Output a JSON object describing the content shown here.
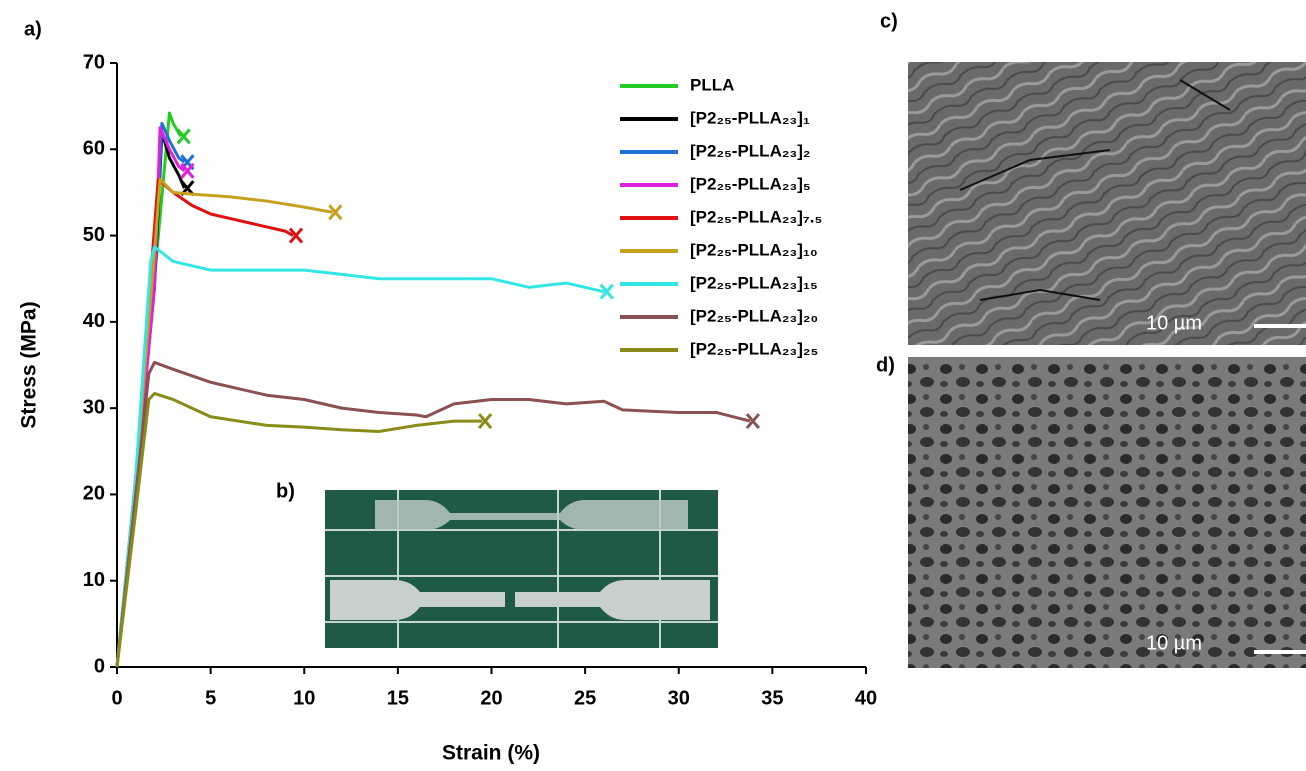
{
  "chart_data": {
    "type": "line",
    "xlabel": "Strain (%)",
    "ylabel": "Stress (MPa)",
    "panel_labels": [
      "a)",
      "b)",
      "c)",
      "d)"
    ],
    "scale_bar_labels": [
      "10 µm",
      "10 µm"
    ],
    "xlim": [
      0,
      40
    ],
    "xticks": [
      0,
      5,
      10,
      15,
      20,
      25,
      30,
      35,
      40
    ],
    "ylim": [
      0,
      70
    ],
    "yticks": [
      0,
      10,
      20,
      30,
      40,
      50,
      60,
      70
    ],
    "grid": false,
    "legend": "upper right",
    "series": [
      {
        "name": "PLLA",
        "color": "#22cc22",
        "x": [
          0,
          1,
          2,
          2.8,
          3.0,
          3.4
        ],
        "values": [
          0,
          22,
          45,
          64.2,
          63,
          61.5
        ]
      },
      {
        "name": "[P2₂₅-PLLA₂₃]₁",
        "color": "#000000",
        "x": [
          0,
          1,
          2,
          2.4,
          2.8,
          3.3,
          3.6
        ],
        "values": [
          0,
          21,
          44,
          62,
          59,
          57,
          55.5
        ]
      },
      {
        "name": "[P2₂₅-PLLA₂₃]₂",
        "color": "#1f6fd6",
        "x": [
          0,
          1,
          2,
          2.4,
          2.8,
          3.3,
          3.6
        ],
        "values": [
          0,
          21,
          45,
          63,
          61,
          59,
          58.5
        ]
      },
      {
        "name": "[P2₂₅-PLLA₂₃]₅",
        "color": "#e020e0",
        "x": [
          0,
          1,
          2,
          2.3,
          2.8,
          3.3,
          3.6
        ],
        "values": [
          0,
          21,
          44,
          62.5,
          60,
          58,
          57.5
        ]
      },
      {
        "name": "[P2₂₅-PLLA₂₃]₇.₅",
        "color": "#e01010",
        "x": [
          0,
          1,
          1.9,
          2.2,
          3,
          4,
          5,
          6,
          7,
          8,
          9,
          9.4
        ],
        "values": [
          0,
          22,
          48,
          56.5,
          55,
          53.5,
          52.5,
          52,
          51.5,
          51,
          50.5,
          50
        ]
      },
      {
        "name": "[P2₂₅-PLLA₂₃]₁₀",
        "color": "#c8a020",
        "x": [
          0,
          1,
          2,
          2.3,
          3,
          4,
          6,
          8,
          10,
          11.5
        ],
        "values": [
          0,
          22,
          48,
          56.5,
          55,
          54.8,
          54.5,
          54,
          53.3,
          52.7
        ]
      },
      {
        "name": "[P2₂₅-PLLA₂₃]₁₅",
        "color": "#33e6e6",
        "x": [
          0,
          1,
          1.8,
          2,
          3,
          5,
          8,
          10,
          12,
          14,
          16,
          18,
          20,
          22,
          24,
          26
        ],
        "values": [
          0,
          22,
          47,
          48.7,
          47,
          46,
          46,
          46,
          45.5,
          45,
          45,
          45,
          45,
          44,
          44.5,
          43.5
        ]
      },
      {
        "name": "[P2₂₅-PLLA₂₃]₂₀",
        "color": "#8b5050",
        "x": [
          0,
          1,
          1.7,
          2,
          3,
          5,
          8,
          10,
          12,
          14,
          16,
          16.5,
          18,
          20,
          22,
          24,
          26,
          27,
          30,
          32,
          33.8
        ],
        "values": [
          0,
          20,
          34,
          35.3,
          34.5,
          33,
          31.5,
          31,
          30,
          29.5,
          29.2,
          29,
          30.5,
          31,
          31,
          30.5,
          30.8,
          29.8,
          29.5,
          29.5,
          28.5
        ]
      },
      {
        "name": "[P2₂₅-PLLA₂₃]₂₅",
        "color": "#8b8b1a",
        "x": [
          0,
          1,
          1.7,
          2,
          3,
          5,
          8,
          10,
          12,
          14,
          16,
          18,
          19.5
        ],
        "values": [
          0,
          18,
          31,
          31.7,
          31,
          29,
          28,
          27.8,
          27.5,
          27.3,
          28,
          28.5,
          28.5
        ]
      }
    ]
  }
}
